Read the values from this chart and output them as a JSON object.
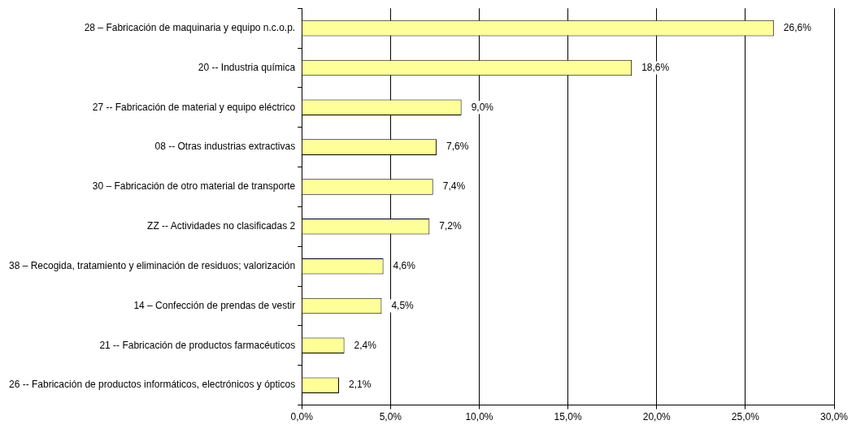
{
  "chart_data": {
    "type": "bar",
    "orientation": "horizontal",
    "categories": [
      "28 – Fabricación de maquinaria y equipo n.c.o.p.",
      "20 -- Industria química",
      "27 -- Fabricación de material y equipo eléctrico",
      "08 -- Otras industrias extractivas",
      "30 – Fabricación de otro material de transporte",
      "ZZ -- Actividades no clasificadas 2",
      "38 – Recogida, tratamiento y eliminación de residuos; valorización",
      "14 – Confección de prendas de vestir",
      "21 -- Fabricación de productos farmacéuticos",
      "26 -- Fabricación de productos informáticos, electrónicos y ópticos"
    ],
    "values": [
      26.6,
      18.6,
      9.0,
      7.6,
      7.4,
      7.2,
      4.6,
      4.5,
      2.4,
      2.1
    ],
    "value_labels": [
      "26,6%",
      "18,6%",
      "9,0%",
      "7,6%",
      "7,4%",
      "7,2%",
      "4,6%",
      "4,5%",
      "2,4%",
      "2,1%"
    ],
    "color": "#ffff99",
    "xlim": [
      0,
      30
    ],
    "xticks": [
      {
        "value": 0,
        "label": "0,0%"
      },
      {
        "value": 5,
        "label": "5,0%"
      },
      {
        "value": 10,
        "label": "10,0%"
      },
      {
        "value": 15,
        "label": "15,0%"
      },
      {
        "value": 20,
        "label": "20,0%"
      },
      {
        "value": 25,
        "label": "25,0%"
      },
      {
        "value": 30,
        "label": "30,0%"
      }
    ],
    "grid": "x",
    "legend": false
  }
}
